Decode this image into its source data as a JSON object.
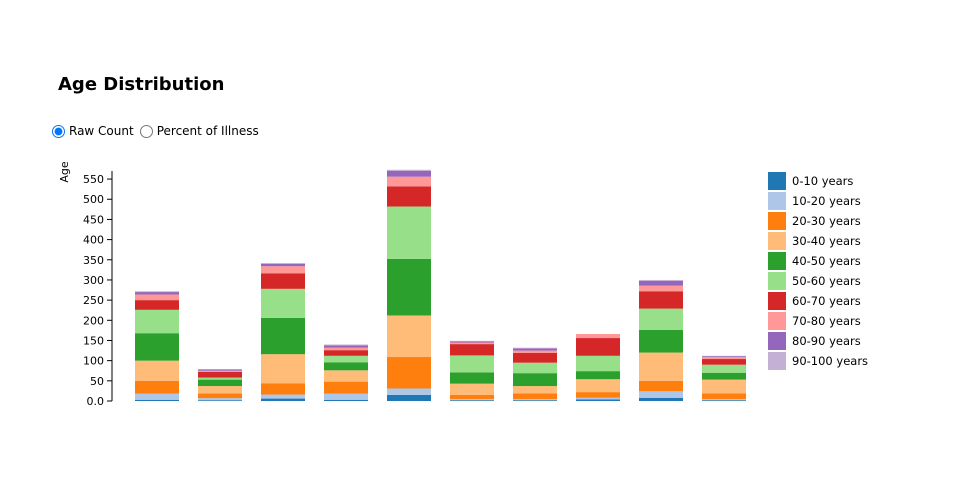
{
  "page": {
    "title": "Age Distribution",
    "mode_options": [
      {
        "label": "Raw Count",
        "selected": true
      },
      {
        "label": "Percent of Illness",
        "selected": false
      }
    ]
  },
  "chart_data": {
    "type": "bar",
    "stacked": true,
    "ylabel": "Age",
    "ylim": [
      0,
      570
    ],
    "yticks": [
      "0.0",
      "50",
      "100",
      "150",
      "200",
      "250",
      "300",
      "350",
      "400",
      "450",
      "500",
      "550"
    ],
    "categories": [
      "",
      "",
      "",
      "",
      "",
      "",
      "",
      "",
      "",
      ""
    ],
    "legend_position": "right",
    "grid": false,
    "series": [
      {
        "name": "0-10 years",
        "color": "#1f77b4",
        "values": [
          3,
          2,
          6,
          3,
          15,
          2,
          2,
          4,
          8,
          2
        ]
      },
      {
        "name": "10-20 years",
        "color": "#aec7e8",
        "values": [
          15,
          5,
          10,
          15,
          16,
          3,
          3,
          4,
          16,
          3
        ]
      },
      {
        "name": "20-30 years",
        "color": "#ff7f0e",
        "values": [
          32,
          12,
          28,
          30,
          78,
          10,
          14,
          14,
          26,
          14
        ]
      },
      {
        "name": "30-40 years",
        "color": "#ffbb78",
        "values": [
          50,
          18,
          72,
          28,
          103,
          28,
          18,
          32,
          70,
          34
        ]
      },
      {
        "name": "40-50 years",
        "color": "#2ca02c",
        "values": [
          68,
          16,
          90,
          20,
          140,
          28,
          32,
          20,
          56,
          17
        ]
      },
      {
        "name": "50-60 years",
        "color": "#98df8a",
        "values": [
          58,
          5,
          72,
          16,
          130,
          42,
          26,
          38,
          53,
          20
        ]
      },
      {
        "name": "60-70 years",
        "color": "#d62728",
        "values": [
          24,
          14,
          38,
          14,
          50,
          28,
          24,
          44,
          43,
          14
        ]
      },
      {
        "name": "70-80 years",
        "color": "#ff9896",
        "values": [
          14,
          3,
          18,
          6,
          24,
          4,
          6,
          10,
          14,
          5
        ]
      },
      {
        "name": "80-90 years",
        "color": "#9467bd",
        "values": [
          6,
          3,
          6,
          6,
          14,
          3,
          5,
          0,
          12,
          2
        ]
      },
      {
        "name": "90-100 years",
        "color": "#c5b0d5",
        "values": [
          2,
          1,
          2,
          2,
          3,
          1,
          2,
          0,
          2,
          1
        ]
      }
    ]
  }
}
